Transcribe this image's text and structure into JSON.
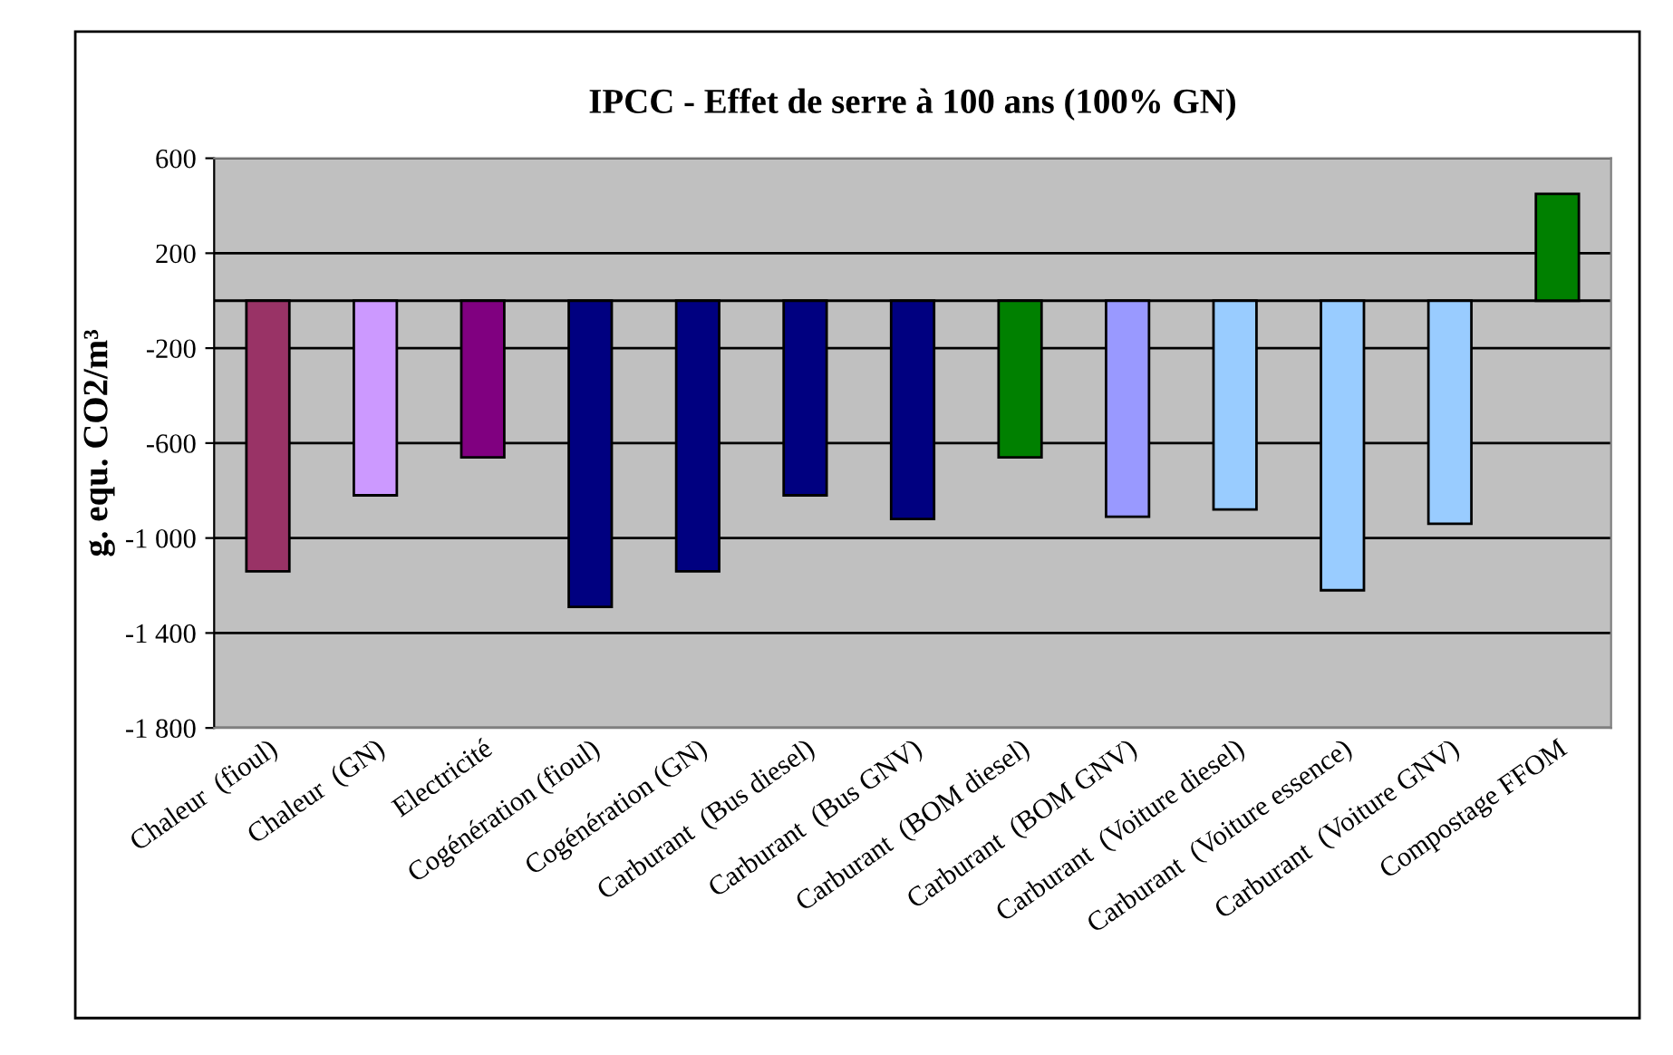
{
  "chart_data": {
    "type": "bar",
    "title": "IPCC - Effet de serre à 100 ans (100% GN)",
    "ylabel": "g. equ. CO2/m³",
    "categories": [
      "Chaleur  (fioul)",
      "Chaleur  (GN)",
      "Electricité",
      "Cogénération (fioul)",
      "Cogénération (GN)",
      "Carburant  (Bus diesel)",
      "Carburant  (Bus GNV)",
      "Carburant  (BOM diesel)",
      "Carburant  (BOM GNV)",
      "Carburant  (Voiture diesel)",
      "Carburant  (Voiture essence)",
      "Carburant  (Voiture GNV)",
      "Compostage FFOM"
    ],
    "values": [
      -1140,
      -820,
      -660,
      -1290,
      -1140,
      -820,
      -920,
      -660,
      -910,
      -880,
      -1220,
      -940,
      450
    ],
    "colors": [
      "#993366",
      "#cc99ff",
      "#800080",
      "#000080",
      "#000080",
      "#000080",
      "#000080",
      "#008000",
      "#9999ff",
      "#99ccff",
      "#99ccff",
      "#99ccff",
      "#008000"
    ],
    "ylim": [
      -1800,
      600
    ],
    "yticks": [
      {
        "value": 600,
        "label": "600"
      },
      {
        "value": 200,
        "label": "200"
      },
      {
        "value": -200,
        "label": "-200"
      },
      {
        "value": -600,
        "label": "-600"
      },
      {
        "value": -1000,
        "label": "-1 000"
      },
      {
        "value": -1400,
        "label": "-1 400"
      },
      {
        "value": -1800,
        "label": "-1 800"
      }
    ],
    "grid": "y"
  }
}
